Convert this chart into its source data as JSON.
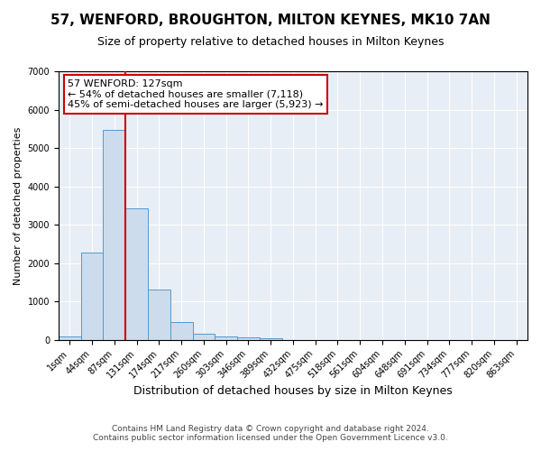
{
  "title": "57, WENFORD, BROUGHTON, MILTON KEYNES, MK10 7AN",
  "subtitle": "Size of property relative to detached houses in Milton Keynes",
  "xlabel": "Distribution of detached houses by size in Milton Keynes",
  "ylabel": "Number of detached properties",
  "footer_line1": "Contains HM Land Registry data © Crown copyright and database right 2024.",
  "footer_line2": "Contains public sector information licensed under the Open Government Licence v3.0.",
  "annotation_line1": "57 WENFORD: 127sqm",
  "annotation_line2": "← 54% of detached houses are smaller (7,118)",
  "annotation_line3": "45% of semi-detached houses are larger (5,923) →",
  "bar_color": "#ccdcec",
  "bar_edge_color": "#5599cc",
  "vline_color": "#cc0000",
  "annotation_box_edgecolor": "#cc0000",
  "categories": [
    "1sqm",
    "44sqm",
    "87sqm",
    "131sqm",
    "174sqm",
    "217sqm",
    "260sqm",
    "303sqm",
    "346sqm",
    "389sqm",
    "432sqm",
    "475sqm",
    "518sqm",
    "561sqm",
    "604sqm",
    "648sqm",
    "691sqm",
    "734sqm",
    "777sqm",
    "820sqm",
    "863sqm"
  ],
  "values": [
    80,
    2280,
    5470,
    3430,
    1310,
    470,
    160,
    90,
    60,
    30,
    0,
    0,
    0,
    0,
    0,
    0,
    0,
    0,
    0,
    0,
    0
  ],
  "vline_bin_index": 2.5,
  "ylim": [
    0,
    7000
  ],
  "yticks": [
    0,
    1000,
    2000,
    3000,
    4000,
    5000,
    6000,
    7000
  ],
  "fig_bg_color": "#ffffff",
  "plot_bg_color": "#e8eef5",
  "grid_color": "#ffffff",
  "title_fontsize": 11,
  "subtitle_fontsize": 9,
  "ylabel_fontsize": 8,
  "xlabel_fontsize": 9,
  "tick_fontsize": 7,
  "footer_fontsize": 6.5,
  "annotation_fontsize": 8
}
